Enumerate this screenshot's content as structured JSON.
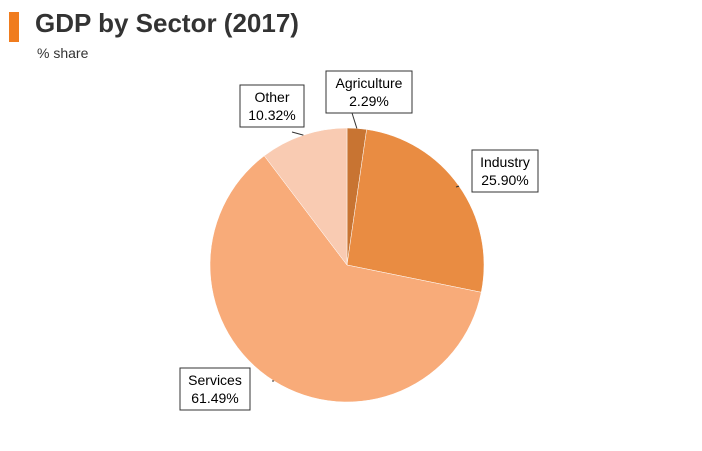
{
  "header": {
    "title": "GDP by Sector (2017)",
    "subtitle": "% share",
    "accent_color": "#f07c1e"
  },
  "chart_data": {
    "type": "pie",
    "title": "GDP by Sector (2017)",
    "subtitle": "% share",
    "start_angle_deg": 0,
    "direction": "clockwise",
    "legend": "none",
    "slices": [
      {
        "name": "Agriculture",
        "value": 2.29,
        "label": "2.29%",
        "color": "#c87432"
      },
      {
        "name": "Industry",
        "value": 25.9,
        "label": "25.90%",
        "color": "#e98c42"
      },
      {
        "name": "Services",
        "value": 61.49,
        "label": "61.49%",
        "color": "#f8ab79"
      },
      {
        "name": "Other",
        "value": 10.32,
        "label": "10.32%",
        "color": "#f9cbb2"
      }
    ]
  }
}
